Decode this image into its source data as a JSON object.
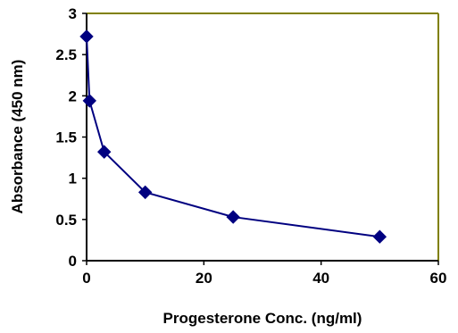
{
  "chart_data": {
    "type": "line",
    "title": "",
    "xlabel": "Progesterone Conc. (ng/ml)",
    "ylabel": "Absorbance (450 nm)",
    "xlim": [
      0,
      60
    ],
    "ylim": [
      0,
      3
    ],
    "x_ticks": [
      "0",
      "20",
      "40",
      "60"
    ],
    "y_ticks": [
      "0",
      "0.5",
      "1",
      "1.5",
      "2",
      "2.5",
      "3"
    ],
    "grid": false,
    "legend": "none",
    "marker": "diamond",
    "series": [
      {
        "x": [
          0,
          0.5,
          3,
          10,
          25,
          50
        ],
        "y": [
          2.72,
          1.94,
          1.32,
          0.83,
          0.53,
          0.29
        ]
      }
    ],
    "colors": {
      "series": "#000080",
      "axis": "#000000",
      "plot_border": "#808000",
      "background": "#ffffff"
    }
  }
}
